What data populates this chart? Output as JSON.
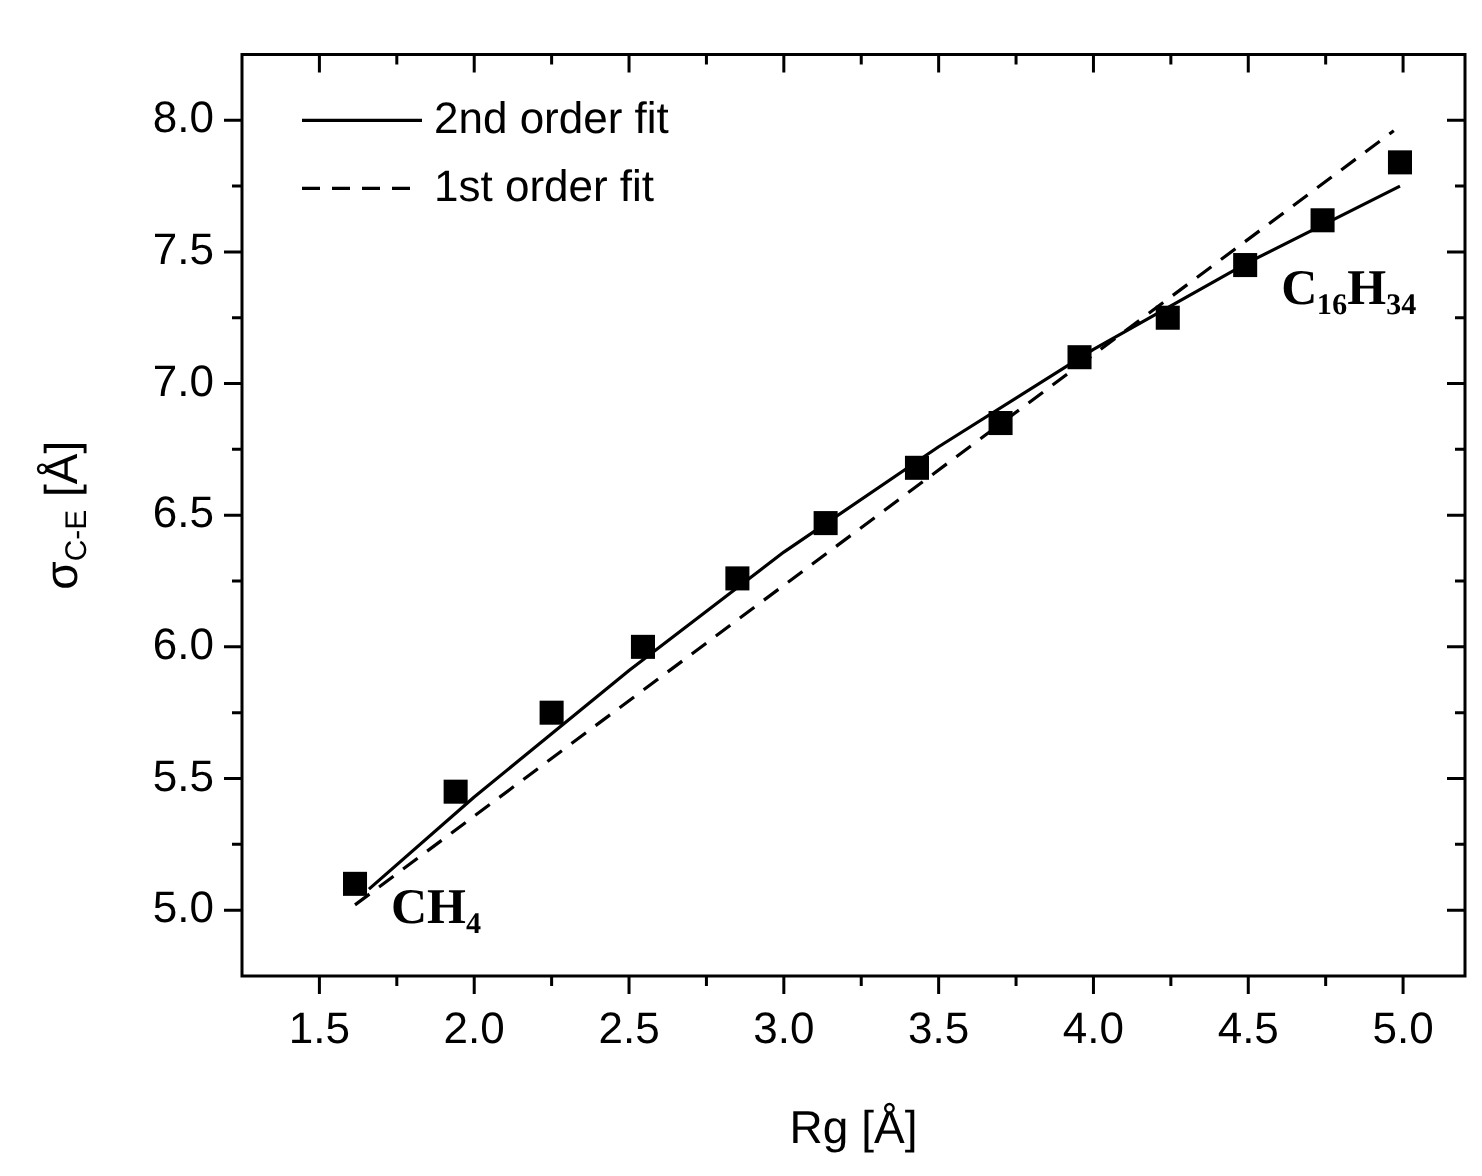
{
  "chart_data": {
    "type": "scatter",
    "xlabel": "Rg [Å]",
    "ylabel": "σ$_{C-E}$ [Å]",
    "xlim": [
      1.25,
      5.2
    ],
    "ylim": [
      4.75,
      8.25
    ],
    "xticks": [
      1.5,
      {
        "value": 1.75,
        "label": null
      },
      "2.0",
      {
        "value": 2.25,
        "label": null
      },
      2.5,
      {
        "value": 2.75,
        "label": null
      },
      "3.0",
      {
        "value": 3.25,
        "label": null
      },
      3.5,
      {
        "value": 3.75,
        "label": null
      },
      "4.0",
      {
        "value": 4.25,
        "label": null
      },
      4.5,
      {
        "value": 4.75,
        "label": null
      },
      "5.0"
    ],
    "yticks": [
      "5.0",
      {
        "value": 5.25,
        "label": null
      },
      5.5,
      {
        "value": 5.75,
        "label": null
      },
      "6.0",
      {
        "value": 6.25,
        "label": null
      },
      6.5,
      {
        "value": 6.75,
        "label": null
      },
      "7.0",
      {
        "value": 7.25,
        "label": null
      },
      7.5,
      {
        "value": 7.75,
        "label": null
      },
      "8.0"
    ],
    "legend": "top left",
    "series": [
      {
        "color": "#000000",
        "marker": "square",
        "x": [
          1.615,
          1.94,
          2.25,
          2.545,
          2.85,
          3.135,
          3.43,
          3.7,
          3.955,
          4.24,
          4.49,
          4.74,
          4.99
        ],
        "values": [
          5.1,
          5.45,
          5.75,
          6.0,
          6.26,
          6.47,
          6.68,
          6.85,
          7.1,
          7.25,
          7.45,
          7.62,
          7.84
        ]
      },
      {
        "type": "line",
        "name": "2nd order fit",
        "color": "#000000",
        "line_style": "solid",
        "x": [
          1.66,
          2.0,
          2.5,
          3.0,
          3.5,
          4.0,
          4.5,
          4.99
        ],
        "values": [
          5.08,
          5.43,
          5.91,
          6.36,
          6.76,
          7.13,
          7.46,
          7.75
        ]
      },
      {
        "type": "line",
        "name": "1st order fit",
        "color": "#000000",
        "line_style": "dashed",
        "x": [
          1.615,
          4.97
        ],
        "values": [
          5.02,
          7.96
        ]
      }
    ],
    "annotations": [
      {
        "text": "CH₄",
        "x": 1.615,
        "y": 5.1
      },
      {
        "text": "C₁₆H₃₄",
        "x": 4.49,
        "y": 7.45
      }
    ]
  }
}
